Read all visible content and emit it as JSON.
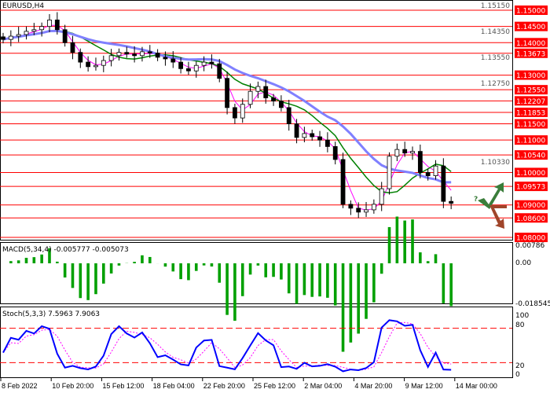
{
  "chart_data": {
    "type": "candlestick",
    "symbol_label": "EURUSD,H4",
    "ylim": [
      1.0793,
      1.1515
    ],
    "axis_ticks": [
      "1.15150",
      "1.14350",
      "1.13550",
      "1.12750",
      "1.10330"
    ],
    "levels": [
      "1.15000",
      "1.14500",
      "1.14000",
      "1.13673",
      "1.13000",
      "1.12550",
      "1.12207",
      "1.11853",
      "1.11500",
      "1.11000",
      "1.10540",
      "1.10000",
      "1.09573",
      "1.09000",
      "1.08600",
      "1.08000"
    ],
    "closes": [
      1.141,
      1.142,
      1.1425,
      1.1435,
      1.144,
      1.145,
      1.147,
      1.144,
      1.14,
      1.137,
      1.134,
      1.1326,
      1.133,
      1.1345,
      1.136,
      1.137,
      1.1365,
      1.136,
      1.1372,
      1.1368,
      1.1355,
      1.135,
      1.134,
      1.132,
      1.1313,
      1.133,
      1.134,
      1.1335,
      1.129,
      1.12,
      1.1168,
      1.121,
      1.125,
      1.1265,
      1.123,
      1.122,
      1.12,
      1.115,
      1.1108,
      1.112,
      1.111,
      1.11,
      1.108,
      1.104,
      1.0902,
      1.089,
      1.0878,
      1.0885,
      1.0902,
      1.095,
      1.105,
      1.1071,
      1.106,
      1.1065,
      1.1,
      1.099,
      1.102,
      1.0911,
      1.0905
    ],
    "moving_average_colors": [
      "#ff00ff",
      "#008000",
      "#8080ff"
    ],
    "time_labels": [
      "8 Feb 2022",
      "10 Feb 20:00",
      "15 Feb 12:00",
      "18 Feb 04:00",
      "22 Feb 20:00",
      "25 Feb 12:00",
      "2 Mar 04:00",
      "4 Mar 20:00",
      "9 Mar 12:00",
      "14 Mar 00:00"
    ],
    "macd": {
      "label": "MACD(5,34,4) -0.005777 -0.005073",
      "ticks": [
        "0.00786",
        "0.00",
        "-0.018545"
      ],
      "ylim": [
        -0.0185,
        0.00786
      ]
    },
    "stoch": {
      "label": "Stoch(5,3,3) 7.5963 7.9063",
      "ticks": [
        "100",
        "80",
        "20",
        "0"
      ],
      "levels": [
        80,
        20
      ]
    },
    "signal_annotation": "?"
  },
  "colors": {
    "level_line": "#ff0000",
    "label_bg": "#ff0000",
    "up_arrow": "#3a7d3a",
    "down_arrow": "#a0452a",
    "macd_bar": "#00a000",
    "stoch_main": "#0000ff",
    "stoch_signal": "#ff00ff"
  }
}
